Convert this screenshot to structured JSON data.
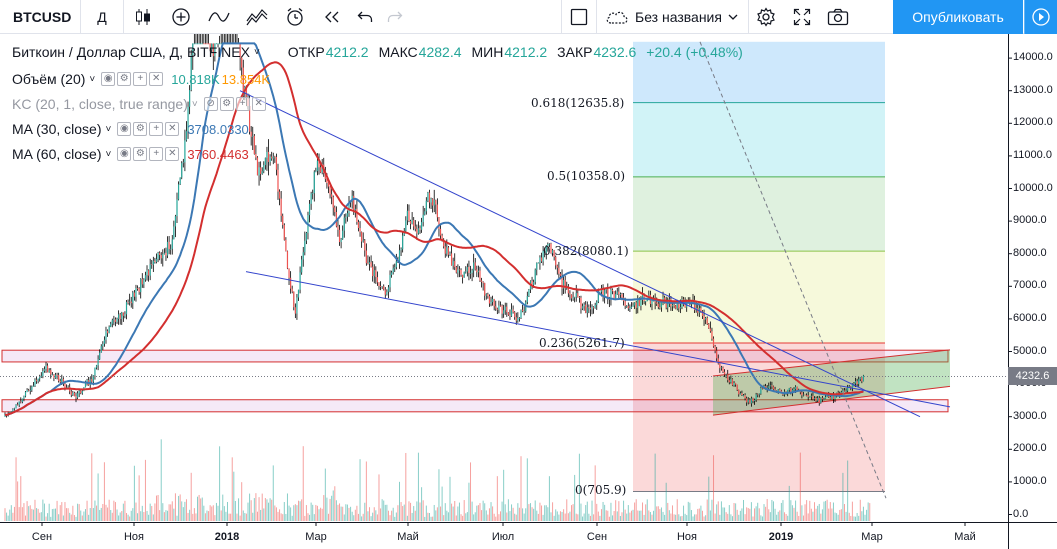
{
  "toolbar": {
    "symbol": "BTCUSD",
    "interval": "Д",
    "icons": [
      "candles-icon",
      "add-indicator-icon",
      "compare-icon",
      "indicators-icon",
      "alert-icon",
      "replay-icon",
      "undo-icon",
      "redo-icon",
      "fullscreen-layout-icon",
      "cloud-icon",
      "settings-icon",
      "expand-icon",
      "snapshot-icon"
    ],
    "layout_name": "Без названия",
    "publish_label": "Опубликовать"
  },
  "legend": {
    "main_title": "Биткоин / Доллар США, Д, BITFINEX",
    "ohlc": [
      {
        "label": "ОТКР",
        "value": "4212.2"
      },
      {
        "label": "МАКС",
        "value": "4282.4"
      },
      {
        "label": "МИН",
        "value": "4212.2"
      },
      {
        "label": "ЗАКР",
        "value": "4232.6"
      },
      {
        "label": "",
        "value": "+20.4 (+0.48%)"
      }
    ],
    "indicators": [
      {
        "name": "Объём (20)",
        "values": [
          "10.818K",
          "13.854K"
        ],
        "colors": [
          "#26a69a",
          "#ff9800"
        ]
      },
      {
        "name": "KC (20, 1, close, true range)",
        "values": [],
        "colors": [],
        "muted": true
      },
      {
        "name": "MA (30, close)",
        "values": [
          "3708.0330"
        ],
        "colors": [
          "#3c78b4"
        ]
      },
      {
        "name": "MA (60, close)",
        "values": [
          "3760.4463"
        ],
        "colors": [
          "#d32f2f"
        ]
      }
    ]
  },
  "price_axis": {
    "labels": [
      "14000.0",
      "13000.0",
      "12000.0",
      "11000.0",
      "10000.0",
      "9000.0",
      "8000.0",
      "7000.0",
      "6000.0",
      "5000.0",
      "4000.0",
      "3000.0",
      "2000.0",
      "1000.0",
      "0.0"
    ],
    "current_price": "4232.6"
  },
  "time_axis": {
    "labels": [
      "Сен",
      "Ноя",
      "2018",
      "Мар",
      "Май",
      "Июл",
      "Сен",
      "Ноя",
      "2019",
      "Мар",
      "Май"
    ]
  },
  "fibonacci": {
    "levels": [
      {
        "ratio": "0.618",
        "price": "12635.8",
        "label": "0.618(12635.8)",
        "color": "#26a69a"
      },
      {
        "ratio": "0.5",
        "price": "10358.0",
        "label": "0.5(10358.0)",
        "color": "#4caf50"
      },
      {
        "ratio": "0.382",
        "price": "8080.1",
        "label": "0.382(8080.1)",
        "color": "#8bc34a"
      },
      {
        "ratio": "0.236",
        "price": "5261.7",
        "label": "0.236(5261.7)",
        "color": "#e53935"
      },
      {
        "ratio": "0",
        "price": "705.9",
        "label": "0(705.9)",
        "color": "#787b86"
      }
    ]
  },
  "colors": {
    "up": "#26a69a",
    "down": "#ef5350",
    "ma30": "#3c78b4",
    "ma60": "#d32f2f",
    "trendline": "#3344cc",
    "accent": "#2196f3"
  },
  "chart_data": {
    "type": "candlestick",
    "title": "Биткоин / Доллар США, Д, BITFINEX",
    "ylim": [
      0,
      14500
    ],
    "series": [
      {
        "name": "MA (30, close)",
        "last": 3708.033
      },
      {
        "name": "MA (60, close)",
        "last": 3760.4463
      }
    ],
    "annotations": [
      "Fibonacci retracement 0 – 0.618",
      "descending wedge trendlines",
      "support zones ~3200–3500 and ~4700–5000",
      "ascending channel"
    ]
  }
}
